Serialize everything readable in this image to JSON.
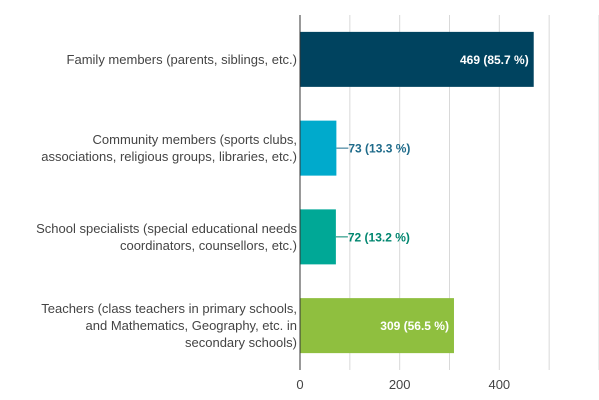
{
  "chart_data": {
    "type": "bar",
    "orientation": "horizontal",
    "categories": [
      [
        "Family members (parents, siblings, etc.)"
      ],
      [
        "Community members (sports clubs,",
        "associations, religious groups, libraries, etc.)"
      ],
      [
        "School specialists (special educational needs",
        "coordinators, counsellors, etc.)"
      ],
      [
        "Teachers (class teachers in primary schools,",
        "and Mathematics, Geography, etc. in",
        "secondary schools)"
      ]
    ],
    "values": [
      469,
      73,
      72,
      309
    ],
    "data_labels": [
      "469 (85.7 %)",
      "73 (13.3 %)",
      "72 (13.2 %)",
      "309 (56.5 %)"
    ],
    "colors": [
      "#00435f",
      "#00aacc",
      "#00a896",
      "#8fbf3f"
    ],
    "label_colors": [
      "#ffffff",
      "#1f6b8a",
      "#00866f",
      "#ffffff"
    ],
    "label_inside": [
      true,
      false,
      false,
      true
    ],
    "x_ticks": [
      "0",
      "200",
      "400"
    ],
    "xlim": [
      0,
      600
    ],
    "grid": true
  }
}
